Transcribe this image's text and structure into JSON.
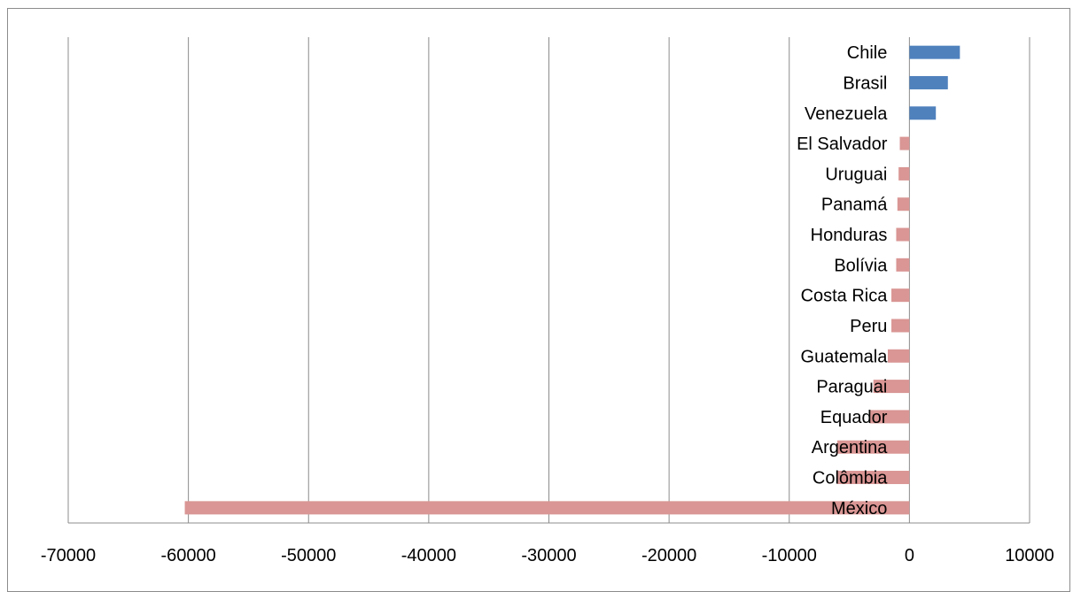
{
  "chart_data": {
    "type": "bar",
    "orientation": "horizontal",
    "title": "",
    "xlabel": "",
    "ylabel": "",
    "xlim": [
      -70000,
      10000
    ],
    "x_ticks": [
      "-70000",
      "-60000",
      "-50000",
      "-40000",
      "-30000",
      "-20000",
      "-10000",
      "0",
      "10000"
    ],
    "x_tick_values": [
      -70000,
      -60000,
      -50000,
      -40000,
      -30000,
      -20000,
      -10000,
      0,
      10000
    ],
    "grid": "vertical",
    "legend": "none",
    "categories": [
      "Chile",
      "Brasil",
      "Venezuela",
      "El Salvador",
      "Uruguai",
      "Panamá",
      "Honduras",
      "Bolívia",
      "Costa Rica",
      "Peru",
      "Guatemala",
      "Paraguai",
      "Equador",
      "Argentina",
      "Colômbia",
      "México"
    ],
    "values": [
      4200,
      3200,
      2200,
      -800,
      -900,
      -1000,
      -1100,
      -1100,
      -1500,
      -1500,
      -1800,
      -3000,
      -3300,
      -6000,
      -6000,
      -60300
    ],
    "colors": {
      "positive": "#4f81bd",
      "negative": "#d99694",
      "grid": "#8c8c8c",
      "axis": "#8c8c8c"
    }
  }
}
